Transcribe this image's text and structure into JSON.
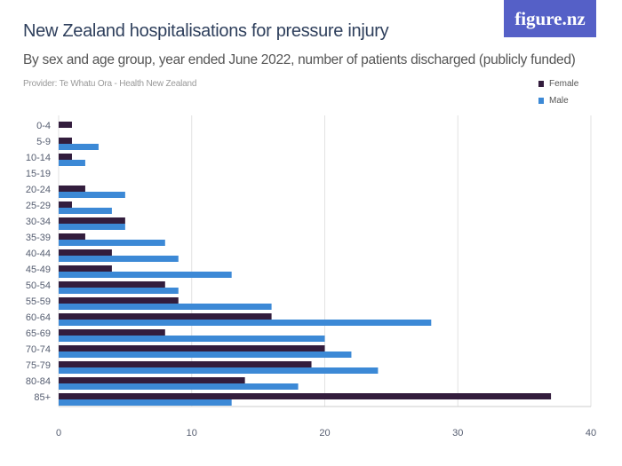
{
  "logo": "figure.nz",
  "provider": "Provider: Te Whatu Ora - Health New Zealand",
  "colors": {
    "Female": "#331d3d",
    "Male": "#3c89d6",
    "logo_bg": "#5560c7"
  },
  "chart_data": {
    "type": "bar",
    "orientation": "horizontal",
    "title": "New Zealand hospitalisations for pressure injury",
    "subtitle": "By sex and age group, year ended June 2022, number of patients discharged (publicly funded)",
    "categories": [
      "0-4",
      "5-9",
      "10-14",
      "15-19",
      "20-24",
      "25-29",
      "30-34",
      "35-39",
      "40-44",
      "45-49",
      "50-54",
      "55-59",
      "60-64",
      "65-69",
      "70-74",
      "75-79",
      "80-84",
      "85+"
    ],
    "series": [
      {
        "name": "Female",
        "values": [
          1,
          1,
          1,
          0,
          2,
          1,
          5,
          2,
          4,
          4,
          8,
          9,
          16,
          8,
          20,
          19,
          14,
          37
        ]
      },
      {
        "name": "Male",
        "values": [
          0,
          3,
          2,
          0,
          5,
          4,
          5,
          8,
          9,
          13,
          9,
          16,
          28,
          20,
          22,
          24,
          18,
          13
        ]
      }
    ],
    "xlim": [
      0,
      40
    ],
    "xticks": [
      "0",
      "10",
      "20",
      "30",
      "40"
    ],
    "grid": true,
    "legend_position": "top-right"
  }
}
